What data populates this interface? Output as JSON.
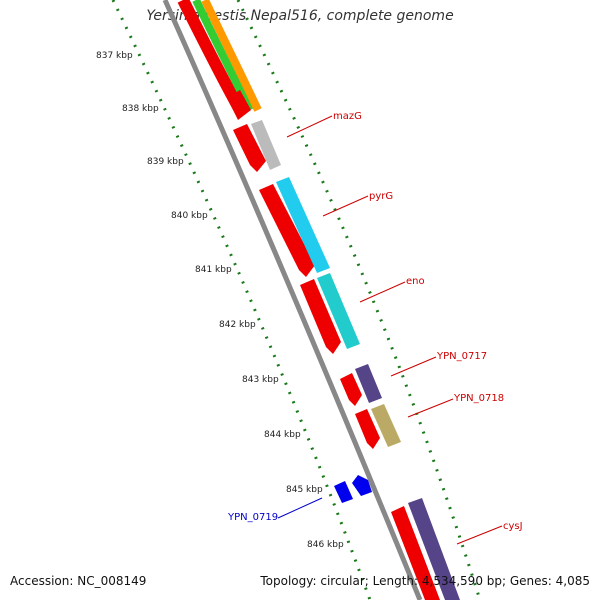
{
  "title": "Yersinia pestis Nepal516, complete genome",
  "footer": {
    "accession": "Accession: NC_008149",
    "summary": "Topology: circular; Length: 4,534,590 bp; Genes: 4,085"
  },
  "colors": {
    "backbone": "#888888",
    "tick": "#1a7a1a",
    "cds": "#ee0000",
    "label_red": "#cc0000",
    "label_blue": "#0000cc"
  },
  "ticks": [
    "837 kbp",
    "838 kbp",
    "839 kbp",
    "840 kbp",
    "841 kbp",
    "842 kbp",
    "843 kbp",
    "844 kbp",
    "845 kbp",
    "846 kbp"
  ],
  "genes": [
    {
      "label": "mazG",
      "color": "label_red"
    },
    {
      "label": "pyrG",
      "color": "label_red"
    },
    {
      "label": "eno",
      "color": "label_red"
    },
    {
      "label": "YPN_0717",
      "color": "label_red"
    },
    {
      "label": "YPN_0718",
      "color": "label_red"
    },
    {
      "label": "YPN_0719",
      "color": "label_blue"
    },
    {
      "label": "cysJ",
      "color": "label_red"
    }
  ]
}
